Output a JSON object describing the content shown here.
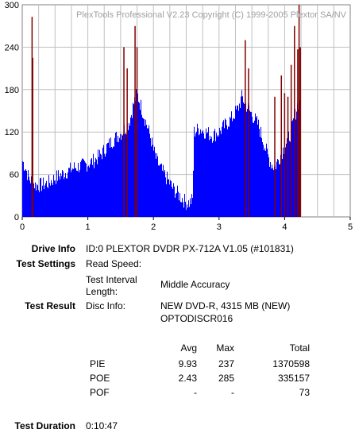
{
  "chart_data": {
    "type": "bar",
    "title": "PlexTools Professional V2.23 Copyright (C) 1999-2005 Plextor SA/NV",
    "xlabel": "",
    "ylabel": "",
    "xlim": [
      0,
      5
    ],
    "ylim": [
      0,
      300
    ],
    "x_ticks": [
      "0",
      "1",
      "2",
      "3",
      "4",
      "5"
    ],
    "y_ticks": [
      "0",
      "60",
      "120",
      "180",
      "240",
      "300"
    ],
    "grid": true,
    "colors": {
      "series": "#0000ff",
      "peaks": "#800000",
      "grid": "#c0c0c0",
      "background": "#ffffff"
    },
    "series_profile": [
      [
        0.0,
        80
      ],
      [
        0.05,
        70
      ],
      [
        0.1,
        55
      ],
      [
        0.15,
        50
      ],
      [
        0.2,
        45
      ],
      [
        0.3,
        45
      ],
      [
        0.4,
        48
      ],
      [
        0.5,
        55
      ],
      [
        0.6,
        60
      ],
      [
        0.7,
        65
      ],
      [
        0.8,
        70
      ],
      [
        0.9,
        72
      ],
      [
        1.0,
        75
      ],
      [
        1.1,
        80
      ],
      [
        1.2,
        88
      ],
      [
        1.3,
        100
      ],
      [
        1.4,
        110
      ],
      [
        1.5,
        118
      ],
      [
        1.6,
        128
      ],
      [
        1.65,
        140
      ],
      [
        1.7,
        160
      ],
      [
        1.75,
        175
      ],
      [
        1.8,
        160
      ],
      [
        1.85,
        145
      ],
      [
        1.9,
        130
      ],
      [
        1.95,
        115
      ],
      [
        2.0,
        95
      ],
      [
        2.05,
        80
      ],
      [
        2.1,
        70
      ],
      [
        2.2,
        55
      ],
      [
        2.3,
        40
      ],
      [
        2.4,
        30
      ],
      [
        2.5,
        20
      ],
      [
        2.55,
        20
      ],
      [
        2.6,
        25
      ],
      [
        2.62,
        120
      ],
      [
        2.7,
        125
      ],
      [
        2.8,
        120
      ],
      [
        2.9,
        115
      ],
      [
        3.0,
        120
      ],
      [
        3.1,
        130
      ],
      [
        3.2,
        140
      ],
      [
        3.3,
        155
      ],
      [
        3.35,
        170
      ],
      [
        3.4,
        160
      ],
      [
        3.5,
        145
      ],
      [
        3.6,
        130
      ],
      [
        3.7,
        100
      ],
      [
        3.75,
        85
      ],
      [
        3.8,
        75
      ],
      [
        3.85,
        70
      ],
      [
        3.9,
        80
      ],
      [
        3.95,
        90
      ],
      [
        4.0,
        100
      ],
      [
        4.05,
        110
      ],
      [
        4.1,
        120
      ],
      [
        4.15,
        140
      ],
      [
        4.2,
        160
      ],
      [
        4.24,
        170
      ]
    ],
    "peaks": [
      [
        0.15,
        283
      ],
      [
        0.16,
        225
      ],
      [
        1.55,
        240
      ],
      [
        1.6,
        210
      ],
      [
        1.72,
        270
      ],
      [
        1.75,
        240
      ],
      [
        3.4,
        250
      ],
      [
        3.45,
        210
      ],
      [
        3.85,
        170
      ],
      [
        3.95,
        200
      ],
      [
        4.0,
        175
      ],
      [
        4.05,
        170
      ],
      [
        4.1,
        215
      ],
      [
        4.15,
        270
      ],
      [
        4.2,
        237
      ],
      [
        4.22,
        300
      ],
      [
        4.24,
        240
      ]
    ]
  },
  "drive_info": {
    "label": "Drive Info",
    "value": "ID:0 PLEXTOR DVDR PX-712A V1.05 (#101831)"
  },
  "test_settings": {
    "label": "Test Settings",
    "read_speed_label": "Read Speed:",
    "read_speed_value": "",
    "interval_label_1": "Test Interval",
    "interval_label_2": "Length:",
    "interval_value": "Middle Accuracy"
  },
  "test_result": {
    "label": "Test Result",
    "disc_info_label": "Disc Info:",
    "disc_info_1": "NEW DVD-R, 4315 MB (NEW)",
    "disc_info_2": "OPTODISCR016"
  },
  "stats": {
    "headers": {
      "avg": "Avg",
      "max": "Max",
      "total": "Total"
    },
    "rows": [
      {
        "name": "PIE",
        "avg": "9.93",
        "max": "237",
        "total": "1370598"
      },
      {
        "name": "POE",
        "avg": "2.43",
        "max": "285",
        "total": "335157"
      },
      {
        "name": "POF",
        "avg": "-",
        "max": "-",
        "total": "73"
      }
    ]
  },
  "duration": {
    "label": "Test Duration",
    "value": "0:10:47"
  }
}
